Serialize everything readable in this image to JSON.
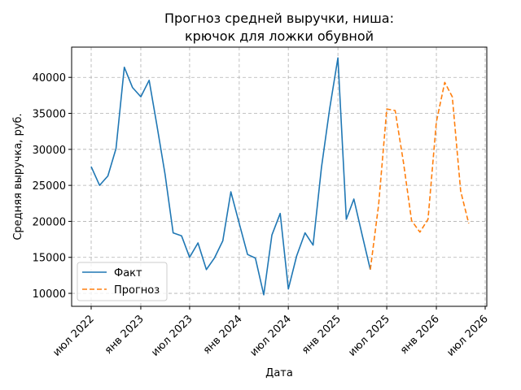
{
  "chart_data": {
    "type": "line",
    "title_lines": [
      "Прогноз средней выручки, ниша:",
      "крючок для ложки обувной"
    ],
    "xlabel": "Дата",
    "ylabel": "Средняя выручка, руб.",
    "ylim": [
      8200,
      44200
    ],
    "y_ticks": [
      10000,
      15000,
      20000,
      25000,
      30000,
      35000,
      40000
    ],
    "x_ticks": [
      {
        "date": "2022-07-01",
        "label": "июл 2022"
      },
      {
        "date": "2023-01-01",
        "label": "янв 2023"
      },
      {
        "date": "2023-07-01",
        "label": "июл 2023"
      },
      {
        "date": "2024-01-01",
        "label": "янв 2024"
      },
      {
        "date": "2024-07-01",
        "label": "июл 2024"
      },
      {
        "date": "2025-01-01",
        "label": "янв 2025"
      },
      {
        "date": "2025-07-01",
        "label": "июл 2025"
      },
      {
        "date": "2026-01-01",
        "label": "янв 2026"
      },
      {
        "date": "2026-07-01",
        "label": "июл 2026"
      }
    ],
    "grid": true,
    "legend_position": "lower-left",
    "series": [
      {
        "name": "Факт",
        "color": "#1f77b4",
        "style": "solid",
        "x": [
          "2022-07",
          "2022-08",
          "2022-09",
          "2022-10",
          "2022-11",
          "2022-12",
          "2023-01",
          "2023-02",
          "2023-03",
          "2023-04",
          "2023-05",
          "2023-06",
          "2023-07",
          "2023-08",
          "2023-09",
          "2023-10",
          "2023-11",
          "2023-12",
          "2024-01",
          "2024-02",
          "2024-03",
          "2024-04",
          "2024-05",
          "2024-06",
          "2024-07",
          "2024-08",
          "2024-09",
          "2024-10",
          "2024-11",
          "2024-12",
          "2025-01",
          "2025-02",
          "2025-03",
          "2025-04",
          "2025-05"
        ],
        "values": [
          27600,
          25000,
          26300,
          30100,
          41400,
          38600,
          37300,
          39600,
          33500,
          26500,
          18400,
          18000,
          15000,
          17000,
          13300,
          14900,
          17300,
          24100,
          19700,
          15400,
          14900,
          9800,
          18100,
          21100,
          10600,
          15200,
          18400,
          16700,
          27500,
          35600,
          42700,
          20300,
          23100,
          18100,
          13300
        ]
      },
      {
        "name": "Прогноз",
        "color": "#ff7f0e",
        "style": "dashed",
        "x": [
          "2025-05",
          "2025-06",
          "2025-07",
          "2025-08",
          "2025-09",
          "2025-10",
          "2025-11",
          "2025-12",
          "2026-01",
          "2026-02",
          "2026-03",
          "2026-04",
          "2026-05"
        ],
        "values": [
          13300,
          22300,
          35600,
          35400,
          28200,
          20100,
          18500,
          20300,
          33800,
          39300,
          37300,
          24200,
          19700
        ]
      }
    ]
  }
}
